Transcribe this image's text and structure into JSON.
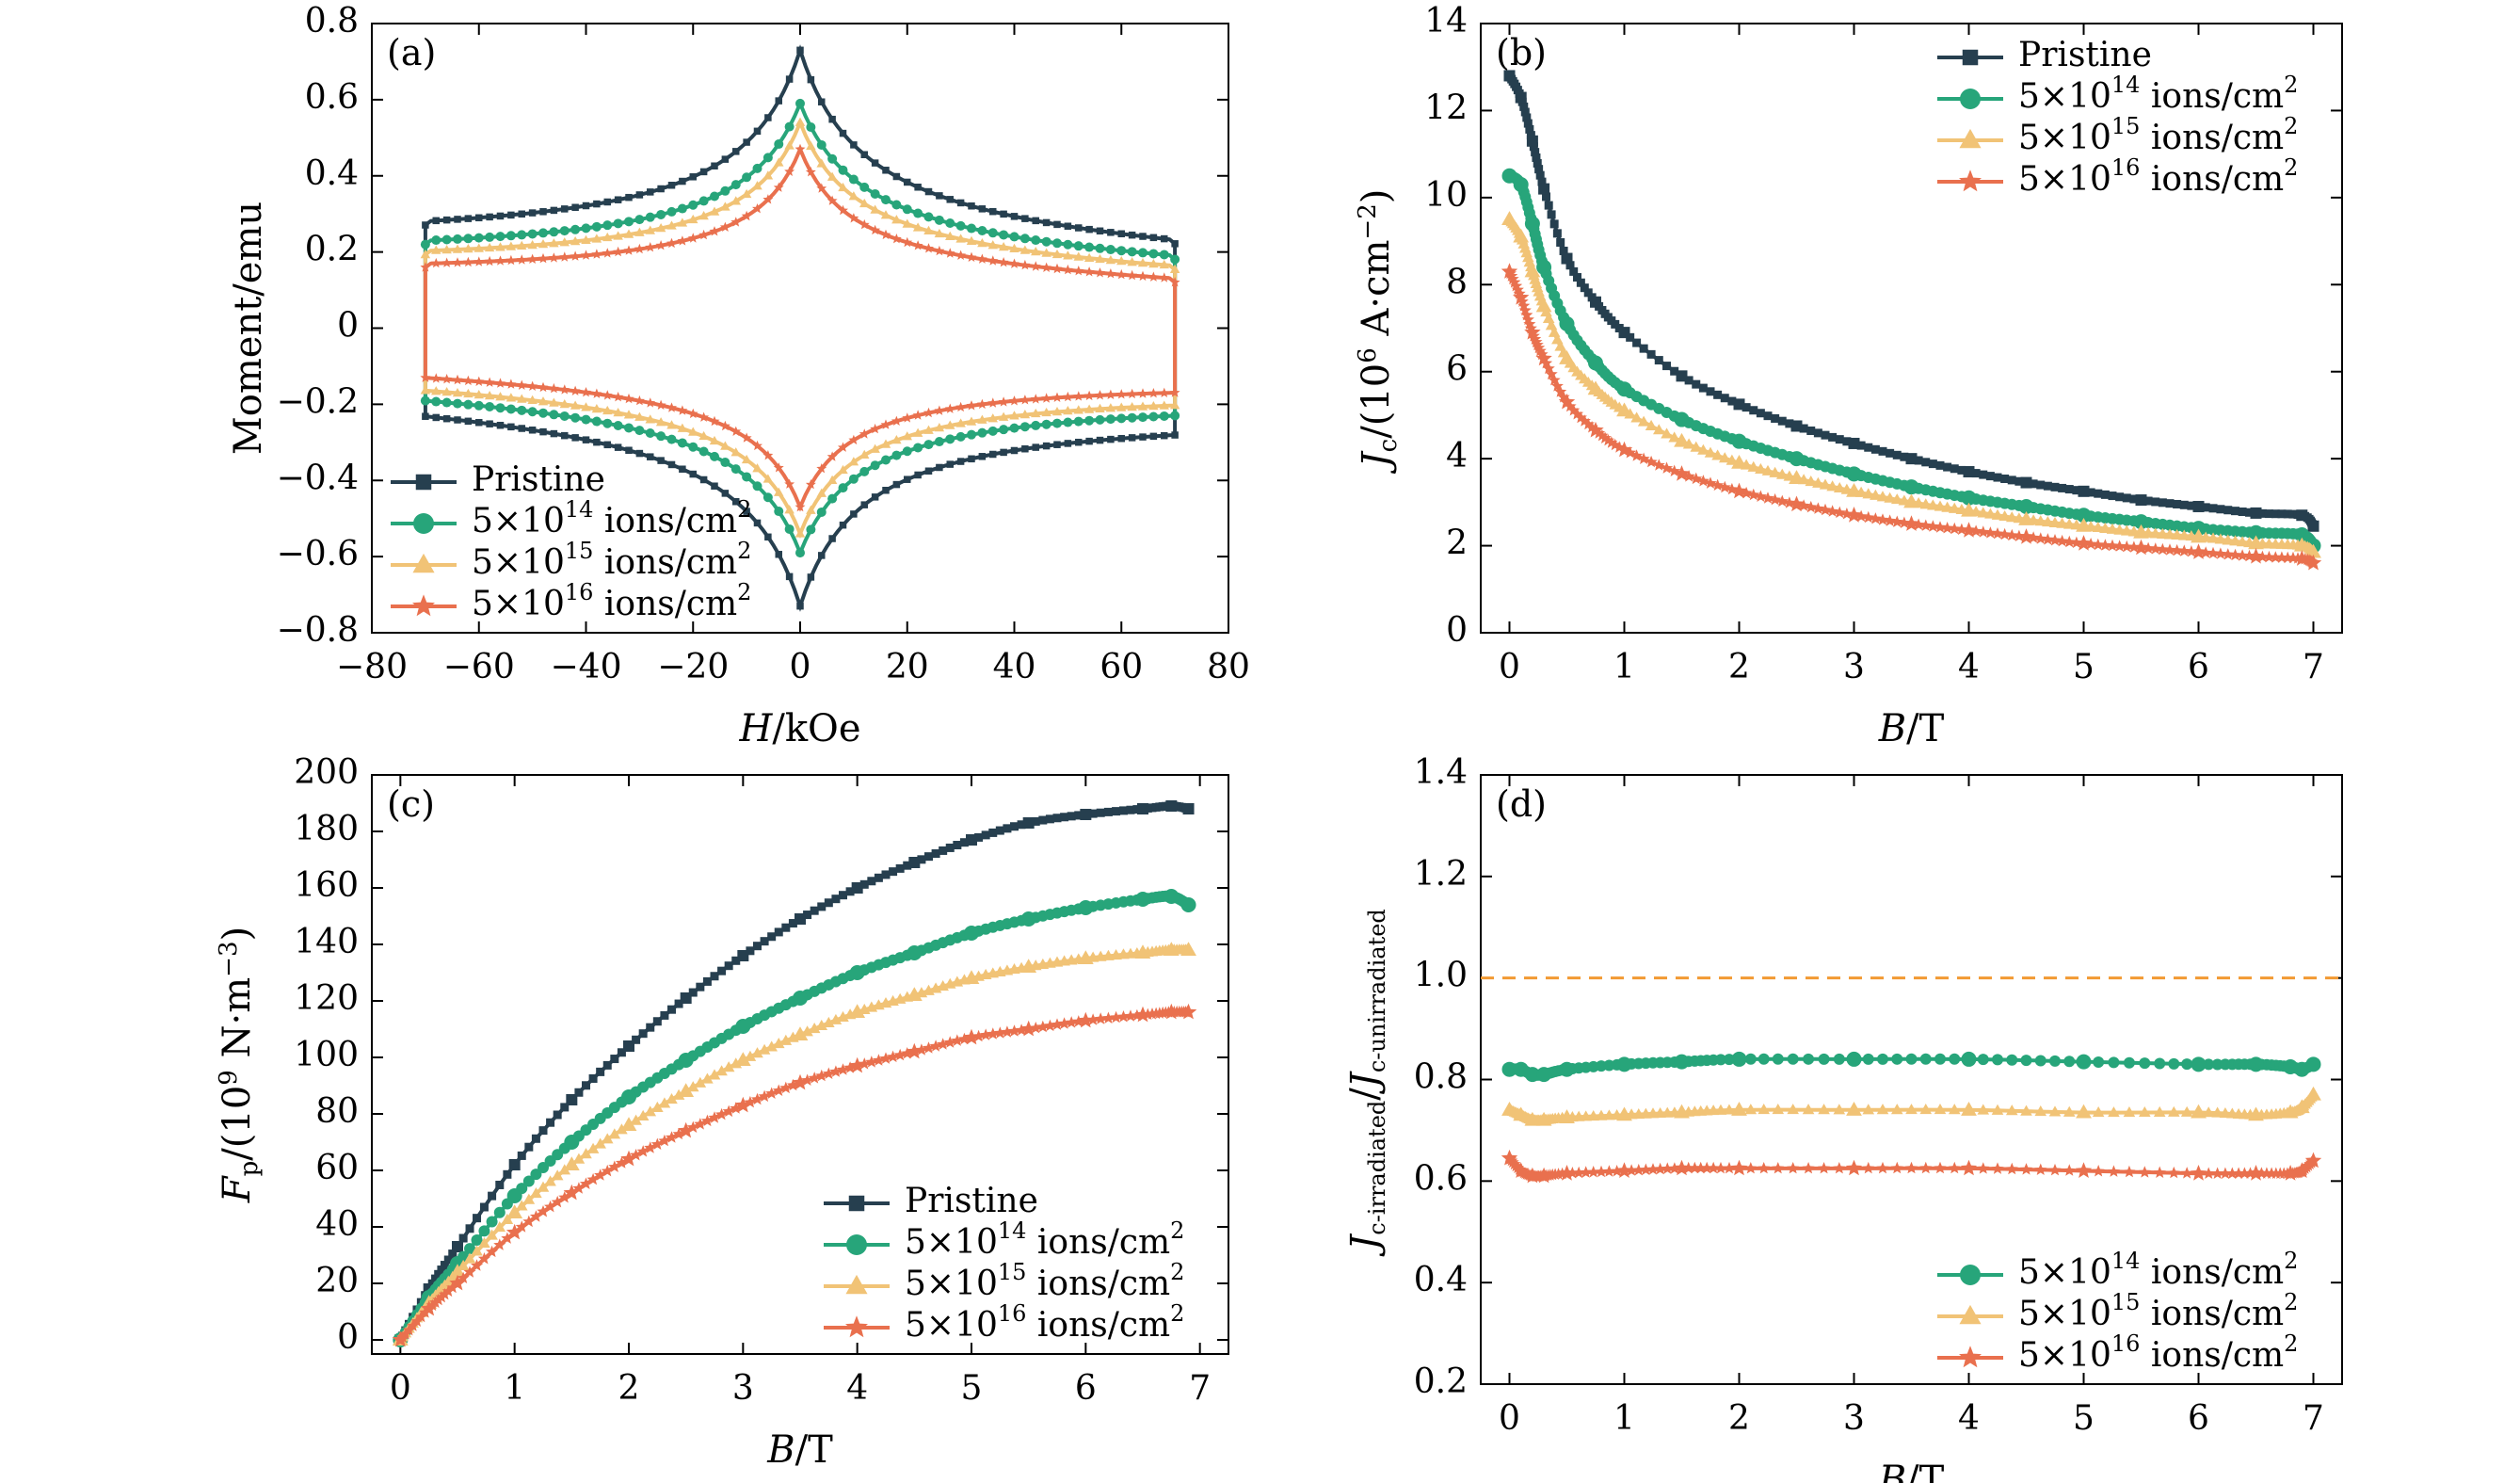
{
  "colors": {
    "pristine": "#263f4f",
    "i14": "#27a57a",
    "i15": "#f1c376",
    "i16": "#e9704e",
    "ref_line": "#f29a33"
  },
  "markers": {
    "pristine": "square",
    "i14": "circle",
    "i15": "triangle",
    "i16": "star"
  },
  "legend_sup_base": "5×10",
  "legend_unit_text": " ions/cm",
  "legend_unit_sup": "2",
  "chart_data": [
    {
      "id": "a",
      "panel_label": "(a)",
      "type": "line",
      "xlabel": {
        "it": "H",
        "rest": "/kOe"
      },
      "ylabel_plain": "Moment/emu",
      "xlim": [
        -80,
        80
      ],
      "ylim": [
        -0.8,
        0.8
      ],
      "xticks": [
        -80,
        -60,
        -40,
        -20,
        0,
        20,
        40,
        60,
        80
      ],
      "xtick_labels": [
        "−80",
        "−60",
        "−40",
        "−20",
        "0",
        "20",
        "40",
        "60",
        "80"
      ],
      "yticks": [
        -0.8,
        -0.6,
        -0.4,
        -0.2,
        0,
        0.2,
        0.4,
        0.6,
        0.8
      ],
      "ytick_labels": [
        "−0.8",
        "−0.6",
        "−0.4",
        "−0.2",
        "0",
        "0.2",
        "0.4",
        "0.6",
        "0.8"
      ],
      "legend_pos": "bottom-left",
      "series": [
        {
          "key": "pristine",
          "name": "Pristine",
          "peak": 0.73,
          "edge": 0.15,
          "width": 11
        },
        {
          "key": "i14",
          "sup": "14",
          "peak": 0.59,
          "edge": 0.125,
          "width": 11
        },
        {
          "key": "i15",
          "sup": "15",
          "peak": 0.54,
          "edge": 0.11,
          "width": 10
        },
        {
          "key": "i16",
          "sup": "16",
          "peak": 0.47,
          "edge": 0.09,
          "width": 9
        }
      ],
      "loop_h_max": 70
    },
    {
      "id": "b",
      "panel_label": "(b)",
      "type": "line",
      "xlabel": {
        "it": "B",
        "rest": "/T"
      },
      "ylabel_b": true,
      "xlim": [
        -0.25,
        7.25
      ],
      "ylim": [
        0,
        14
      ],
      "xticks": [
        0,
        1,
        2,
        3,
        4,
        5,
        6,
        7
      ],
      "xtick_labels": [
        "0",
        "1",
        "2",
        "3",
        "4",
        "5",
        "6",
        "7"
      ],
      "yticks": [
        0,
        2,
        4,
        6,
        8,
        10,
        12,
        14
      ],
      "ytick_labels": [
        "0",
        "2",
        "4",
        "6",
        "8",
        "10",
        "12",
        "14"
      ],
      "legend_pos": "top-right",
      "x": [
        0,
        0.1,
        0.2,
        0.3,
        0.5,
        0.75,
        1,
        1.5,
        2,
        2.5,
        3,
        3.5,
        4,
        4.5,
        5,
        5.5,
        6,
        6.5,
        6.9,
        7
      ],
      "series": [
        {
          "key": "pristine",
          "name": "Pristine",
          "values": [
            12.8,
            12.3,
            11.3,
            10.2,
            8.6,
            7.6,
            6.9,
            5.9,
            5.25,
            4.75,
            4.35,
            4.0,
            3.7,
            3.45,
            3.25,
            3.05,
            2.9,
            2.75,
            2.7,
            2.45
          ]
        },
        {
          "key": "i14",
          "sup": "14",
          "values": [
            10.5,
            10.3,
            9.4,
            8.4,
            7.1,
            6.2,
            5.6,
            4.9,
            4.4,
            4.0,
            3.65,
            3.35,
            3.1,
            2.9,
            2.7,
            2.55,
            2.4,
            2.3,
            2.25,
            2.0
          ]
        },
        {
          "key": "i15",
          "sup": "15",
          "values": [
            9.5,
            9.1,
            8.3,
            7.5,
            6.3,
            5.6,
            5.1,
            4.4,
            3.9,
            3.55,
            3.25,
            3.0,
            2.8,
            2.6,
            2.45,
            2.3,
            2.2,
            2.05,
            2.0,
            1.85
          ]
        },
        {
          "key": "i16",
          "sup": "16",
          "values": [
            8.3,
            7.7,
            6.9,
            6.3,
            5.3,
            4.65,
            4.2,
            3.65,
            3.25,
            2.95,
            2.7,
            2.5,
            2.35,
            2.2,
            2.05,
            1.95,
            1.85,
            1.75,
            1.7,
            1.6
          ]
        }
      ]
    },
    {
      "id": "c",
      "panel_label": "(c)",
      "type": "line",
      "xlabel": {
        "it": "B",
        "rest": "/T"
      },
      "ylabel_c": true,
      "xlim": [
        -0.25,
        7.25
      ],
      "ylim": [
        -5,
        200
      ],
      "xticks": [
        0,
        1,
        2,
        3,
        4,
        5,
        6,
        7
      ],
      "xtick_labels": [
        "0",
        "1",
        "2",
        "3",
        "4",
        "5",
        "6",
        "7"
      ],
      "yticks": [
        0,
        20,
        40,
        60,
        80,
        100,
        120,
        140,
        160,
        180,
        200
      ],
      "ytick_labels": [
        "0",
        "20",
        "40",
        "60",
        "80",
        "100",
        "120",
        "140",
        "160",
        "180",
        "200"
      ],
      "legend_pos": "bottom-right",
      "x": [
        0,
        0.25,
        0.5,
        1,
        1.5,
        2,
        2.5,
        3,
        3.5,
        4,
        4.5,
        5,
        5.5,
        6,
        6.5,
        6.75,
        6.9
      ],
      "series": [
        {
          "key": "pristine",
          "name": "Pristine",
          "values": [
            0,
            18,
            33,
            62,
            85,
            104,
            121,
            136,
            149,
            160,
            169,
            177,
            183,
            186,
            188,
            189,
            188
          ]
        },
        {
          "key": "i14",
          "sup": "14",
          "values": [
            0,
            15,
            27,
            51,
            70,
            86,
            99,
            111,
            121,
            130,
            137,
            144,
            149,
            153,
            156,
            157,
            154
          ]
        },
        {
          "key": "i15",
          "sup": "15",
          "values": [
            0,
            13,
            24,
            45,
            62,
            76,
            88,
            99,
            108,
            116,
            122,
            128,
            132,
            135,
            137,
            138,
            138
          ]
        },
        {
          "key": "i16",
          "sup": "16",
          "values": [
            0,
            11,
            20,
            38,
            52,
            64,
            74,
            83,
            91,
            97,
            102,
            107,
            110,
            113,
            115,
            116,
            116
          ]
        }
      ]
    },
    {
      "id": "d",
      "panel_label": "(d)",
      "type": "line",
      "xlabel": {
        "it": "B",
        "rest": "/T"
      },
      "ylabel_d": true,
      "xlim": [
        -0.25,
        7.25
      ],
      "ylim": [
        0.2,
        1.4
      ],
      "xticks": [
        0,
        1,
        2,
        3,
        4,
        5,
        6,
        7
      ],
      "xtick_labels": [
        "0",
        "1",
        "2",
        "3",
        "4",
        "5",
        "6",
        "7"
      ],
      "yticks": [
        0.2,
        0.4,
        0.6,
        0.8,
        1.0,
        1.2,
        1.4
      ],
      "ytick_labels": [
        "0.2",
        "0.4",
        "0.6",
        "0.8",
        "1.0",
        "1.2",
        "1.4"
      ],
      "legend_pos": "bottom-right",
      "reference_line": 1.0,
      "x": [
        0,
        0.1,
        0.2,
        0.3,
        0.5,
        1,
        1.5,
        2,
        3,
        4,
        5,
        6,
        6.5,
        6.8,
        6.9,
        7
      ],
      "series": [
        {
          "key": "i14",
          "sup": "14",
          "values": [
            0.82,
            0.82,
            0.81,
            0.81,
            0.82,
            0.83,
            0.835,
            0.84,
            0.84,
            0.84,
            0.835,
            0.83,
            0.83,
            0.825,
            0.82,
            0.83
          ]
        },
        {
          "key": "i15",
          "sup": "15",
          "values": [
            0.74,
            0.73,
            0.72,
            0.72,
            0.725,
            0.73,
            0.735,
            0.74,
            0.74,
            0.74,
            0.735,
            0.735,
            0.73,
            0.735,
            0.745,
            0.77
          ]
        },
        {
          "key": "i16",
          "sup": "16",
          "values": [
            0.645,
            0.62,
            0.61,
            0.61,
            0.615,
            0.62,
            0.625,
            0.625,
            0.625,
            0.625,
            0.62,
            0.615,
            0.615,
            0.615,
            0.62,
            0.64
          ]
        }
      ]
    }
  ]
}
